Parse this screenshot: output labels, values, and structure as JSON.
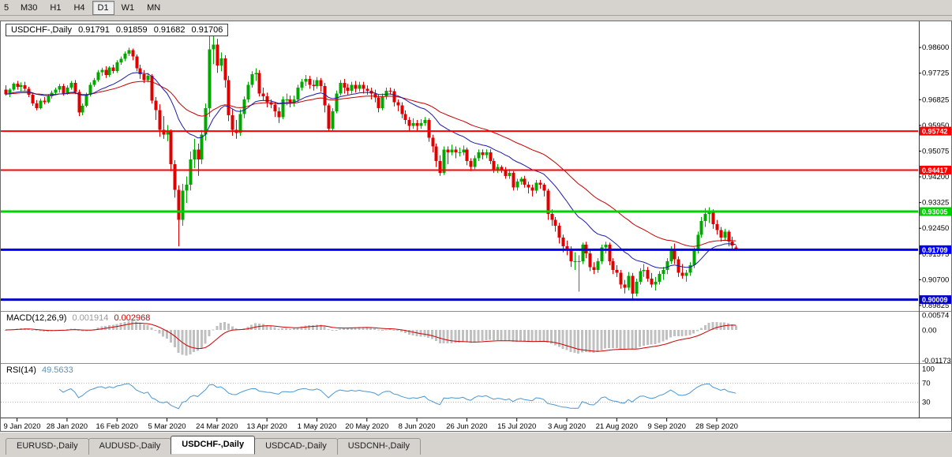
{
  "toolbar": {
    "buttons": [
      "5",
      "M30",
      "H1",
      "H4",
      "D1",
      "W1",
      "MN"
    ],
    "active": "D1"
  },
  "title_box": {
    "symbol": "USDCHF-,Daily",
    "open": "0.91791",
    "high": "0.91859",
    "low": "0.91682",
    "close": "0.91706"
  },
  "macd_panel": {
    "label": "MACD(12,26,9)",
    "main_value": "0.001914",
    "signal_value": "0.002968",
    "axis_labels": [
      {
        "text": "0.00574",
        "value": 0.00574
      },
      {
        "text": "0.00",
        "value": 0
      },
      {
        "text": "-0.01173",
        "value": -0.01173
      }
    ]
  },
  "rsi_panel": {
    "label": "RSI(14)",
    "value": "49.5633",
    "axis_labels": [
      {
        "text": "100",
        "value": 100
      },
      {
        "text": "70",
        "value": 70
      },
      {
        "text": "30",
        "value": 30
      }
    ],
    "dotted_levels": [
      70,
      30
    ]
  },
  "price_axis": {
    "labels": [
      {
        "text": "0.98600",
        "value": 0.986
      },
      {
        "text": "0.97725",
        "value": 0.97725
      },
      {
        "text": "0.96825",
        "value": 0.96825
      },
      {
        "text": "0.95950",
        "value": 0.9595
      },
      {
        "text": "0.95075",
        "value": 0.95075
      },
      {
        "text": "0.94200",
        "value": 0.942
      },
      {
        "text": "0.93325",
        "value": 0.93325
      },
      {
        "text": "0.92450",
        "value": 0.9245
      },
      {
        "text": "0.91575",
        "value": 0.91575
      },
      {
        "text": "0.90700",
        "value": 0.907
      },
      {
        "text": "0.89825",
        "value": 0.89825
      }
    ]
  },
  "levels": [
    {
      "text": "0.95742",
      "value": 0.95742,
      "color": "#ff0000",
      "width": 2
    },
    {
      "text": "0.94417",
      "value": 0.94417,
      "color": "#ff0000",
      "width": 2
    },
    {
      "text": "0.93005",
      "value": 0.93005,
      "color": "#00d200",
      "width": 3
    },
    {
      "text": "0.91709",
      "value": 0.91709,
      "color": "#0000ff",
      "width": 3
    },
    {
      "text": "0.90009",
      "value": 0.90009,
      "color": "#0000c8",
      "width": 3
    }
  ],
  "date_axis": {
    "labels": [
      "9 Jan 2020",
      "28 Jan 2020",
      "16 Feb 2020",
      "5 Mar 2020",
      "24 Mar 2020",
      "13 Apr 2020",
      "1 May 2020",
      "20 May 2020",
      "8 Jun 2020",
      "26 Jun 2020",
      "15 Jul 2020",
      "3 Aug 2020",
      "21 Aug 2020",
      "9 Sep 2020",
      "28 Sep 2020"
    ]
  },
  "tabs": [
    {
      "label": "EURUSD-,Daily",
      "active": false
    },
    {
      "label": "AUDUSD-,Daily",
      "active": false
    },
    {
      "label": "USDCHF-,Daily",
      "active": true
    },
    {
      "label": "USDCAD-,Daily",
      "active": false
    },
    {
      "label": "USDCNH-,Daily",
      "active": false
    }
  ],
  "colors": {
    "up": "#00a800",
    "down": "#e00000",
    "ma_fast": "#1c1ca8",
    "ma_slow": "#c80000",
    "macd_hist": "#c0c0c0",
    "macd_signal": "#cc0000",
    "rsi_line": "#4a96d2",
    "grid_text": "#000000",
    "pane_separator": "#8c8c8c",
    "axis_line": "#3c3c3c"
  },
  "chart_data": {
    "type": "candlestick",
    "symbol": "USDCHF",
    "timeframe": "Daily",
    "last": {
      "open": 0.91791,
      "high": 0.91859,
      "low": 0.91682,
      "close": 0.91706
    },
    "indicators": {
      "macd": {
        "fast": 12,
        "slow": 26,
        "signal": 9,
        "current_main": 0.001914,
        "current_signal": 0.002968
      },
      "rsi": {
        "period": 14,
        "current": 49.5633
      },
      "moving_averages": [
        {
          "type": "EMA",
          "period": 20
        },
        {
          "type": "EMA",
          "period": 45
        }
      ]
    },
    "horizontal_levels": [
      0.95742,
      0.94417,
      0.93005,
      0.91709,
      0.90009
    ],
    "price_range": {
      "top": 0.9945,
      "bottom": 0.8965
    },
    "tick_first_index": 3,
    "tick_step": 13,
    "candles": [
      [
        0.9715,
        0.973,
        0.9695,
        0.97
      ],
      [
        0.97,
        0.972,
        0.969,
        0.9715
      ],
      [
        0.9715,
        0.974,
        0.971,
        0.9735
      ],
      [
        0.9735,
        0.9745,
        0.9715,
        0.9725
      ],
      [
        0.9725,
        0.974,
        0.971,
        0.973
      ],
      [
        0.973,
        0.9742,
        0.9712,
        0.9718
      ],
      [
        0.9718,
        0.9725,
        0.969,
        0.9698
      ],
      [
        0.9698,
        0.9705,
        0.966,
        0.9668
      ],
      [
        0.9668,
        0.968,
        0.9645,
        0.9652
      ],
      [
        0.9652,
        0.9685,
        0.9648,
        0.9678
      ],
      [
        0.9678,
        0.969,
        0.9665,
        0.9672
      ],
      [
        0.9672,
        0.97,
        0.9668,
        0.9692
      ],
      [
        0.9692,
        0.9712,
        0.9685,
        0.9705
      ],
      [
        0.9705,
        0.9722,
        0.9698,
        0.9715
      ],
      [
        0.9715,
        0.9735,
        0.9705,
        0.9728
      ],
      [
        0.9728,
        0.9735,
        0.9695,
        0.9702
      ],
      [
        0.9702,
        0.973,
        0.9698,
        0.9722
      ],
      [
        0.9722,
        0.9745,
        0.9715,
        0.9738
      ],
      [
        0.9738,
        0.9748,
        0.97,
        0.9708
      ],
      [
        0.9708,
        0.9715,
        0.9625,
        0.9638
      ],
      [
        0.9638,
        0.9668,
        0.9628,
        0.966
      ],
      [
        0.966,
        0.9705,
        0.9655,
        0.9698
      ],
      [
        0.9698,
        0.974,
        0.9692,
        0.9732
      ],
      [
        0.9732,
        0.9755,
        0.9725,
        0.9748
      ],
      [
        0.9748,
        0.9782,
        0.9742,
        0.9775
      ],
      [
        0.9775,
        0.979,
        0.9762,
        0.9782
      ],
      [
        0.9782,
        0.9795,
        0.9755,
        0.9765
      ],
      [
        0.9765,
        0.9795,
        0.9758,
        0.979
      ],
      [
        0.979,
        0.98,
        0.977,
        0.9778
      ],
      [
        0.9778,
        0.9815,
        0.9772,
        0.9808
      ],
      [
        0.9808,
        0.9828,
        0.98,
        0.982
      ],
      [
        0.982,
        0.9845,
        0.9812,
        0.9838
      ],
      [
        0.9838,
        0.9858,
        0.983,
        0.985
      ],
      [
        0.985,
        0.9855,
        0.9815,
        0.9828
      ],
      [
        0.9828,
        0.9835,
        0.9778,
        0.9788
      ],
      [
        0.9788,
        0.98,
        0.9752,
        0.9768
      ],
      [
        0.9768,
        0.9782,
        0.9738,
        0.9748
      ],
      [
        0.9748,
        0.9772,
        0.974,
        0.9762
      ],
      [
        0.9762,
        0.9768,
        0.9668,
        0.9678
      ],
      [
        0.9678,
        0.969,
        0.9612,
        0.9645
      ],
      [
        0.9645,
        0.9665,
        0.9555,
        0.9578
      ],
      [
        0.9578,
        0.9625,
        0.9548,
        0.9562
      ],
      [
        0.9562,
        0.9595,
        0.954,
        0.9572
      ],
      [
        0.9572,
        0.958,
        0.9438,
        0.9462
      ],
      [
        0.9462,
        0.9475,
        0.9348,
        0.9375
      ],
      [
        0.9375,
        0.939,
        0.9182,
        0.9272
      ],
      [
        0.9272,
        0.9395,
        0.9252,
        0.9372
      ],
      [
        0.9372,
        0.942,
        0.933,
        0.9392
      ],
      [
        0.9392,
        0.9505,
        0.9372,
        0.9478
      ],
      [
        0.9478,
        0.9548,
        0.9448,
        0.9512
      ],
      [
        0.9512,
        0.9532,
        0.9422,
        0.9478
      ],
      [
        0.9478,
        0.9578,
        0.9462,
        0.9562
      ],
      [
        0.9562,
        0.9668,
        0.9542,
        0.9652
      ],
      [
        0.9652,
        0.9901,
        0.9622,
        0.9852
      ],
      [
        0.9852,
        0.9898,
        0.9802,
        0.9868
      ],
      [
        0.9868,
        0.9888,
        0.9772,
        0.9798
      ],
      [
        0.9798,
        0.9842,
        0.9778,
        0.9822
      ],
      [
        0.9822,
        0.9832,
        0.9722,
        0.9748
      ],
      [
        0.9748,
        0.9762,
        0.9608,
        0.9628
      ],
      [
        0.9628,
        0.9648,
        0.9558,
        0.9578
      ],
      [
        0.9578,
        0.9612,
        0.9548,
        0.9568
      ],
      [
        0.9568,
        0.9648,
        0.9558,
        0.9632
      ],
      [
        0.9632,
        0.9692,
        0.9618,
        0.9682
      ],
      [
        0.9682,
        0.9742,
        0.9672,
        0.9732
      ],
      [
        0.9732,
        0.9778,
        0.9722,
        0.9768
      ],
      [
        0.9768,
        0.9788,
        0.9745,
        0.9772
      ],
      [
        0.9772,
        0.9782,
        0.9692,
        0.9702
      ],
      [
        0.9702,
        0.9722,
        0.9678,
        0.9692
      ],
      [
        0.9692,
        0.9705,
        0.9655,
        0.9672
      ],
      [
        0.9672,
        0.9682,
        0.9652,
        0.9665
      ],
      [
        0.9665,
        0.9672,
        0.9622,
        0.9642
      ],
      [
        0.9642,
        0.9655,
        0.9602,
        0.9622
      ],
      [
        0.9622,
        0.9692,
        0.9615,
        0.9682
      ],
      [
        0.9682,
        0.9702,
        0.9662,
        0.9682
      ],
      [
        0.9682,
        0.9695,
        0.9655,
        0.9672
      ],
      [
        0.9672,
        0.9695,
        0.9658,
        0.9682
      ],
      [
        0.9682,
        0.9732,
        0.9672,
        0.9722
      ],
      [
        0.9722,
        0.9752,
        0.9712,
        0.9742
      ],
      [
        0.9742,
        0.9765,
        0.9728,
        0.9752
      ],
      [
        0.9752,
        0.9762,
        0.9718,
        0.9732
      ],
      [
        0.9732,
        0.9748,
        0.9712,
        0.9728
      ],
      [
        0.9728,
        0.9758,
        0.9718,
        0.9748
      ],
      [
        0.9748,
        0.9755,
        0.9708,
        0.9728
      ],
      [
        0.9728,
        0.9738,
        0.9638,
        0.9662
      ],
      [
        0.9662,
        0.9668,
        0.9572,
        0.9582
      ],
      [
        0.9582,
        0.9652,
        0.9575,
        0.9642
      ],
      [
        0.9642,
        0.9712,
        0.9635,
        0.9702
      ],
      [
        0.9702,
        0.9748,
        0.9695,
        0.9738
      ],
      [
        0.9738,
        0.9752,
        0.9702,
        0.9722
      ],
      [
        0.9722,
        0.9735,
        0.9698,
        0.9712
      ],
      [
        0.9712,
        0.9742,
        0.9702,
        0.9732
      ],
      [
        0.9732,
        0.9745,
        0.9705,
        0.9718
      ],
      [
        0.9718,
        0.9742,
        0.9708,
        0.9732
      ],
      [
        0.9732,
        0.9742,
        0.9702,
        0.9718
      ],
      [
        0.9718,
        0.973,
        0.9698,
        0.9712
      ],
      [
        0.9712,
        0.9722,
        0.9682,
        0.9702
      ],
      [
        0.9702,
        0.9715,
        0.9672,
        0.9688
      ],
      [
        0.9688,
        0.9698,
        0.9638,
        0.9652
      ],
      [
        0.9652,
        0.9702,
        0.9645,
        0.9692
      ],
      [
        0.9692,
        0.9722,
        0.9682,
        0.9712
      ],
      [
        0.9712,
        0.9722,
        0.9698,
        0.971
      ],
      [
        0.971,
        0.9718,
        0.9658,
        0.9672
      ],
      [
        0.9672,
        0.9682,
        0.9642,
        0.9662
      ],
      [
        0.9662,
        0.9672,
        0.9618,
        0.9632
      ],
      [
        0.9632,
        0.9645,
        0.9598,
        0.9612
      ],
      [
        0.9612,
        0.9622,
        0.9572,
        0.9592
      ],
      [
        0.9592,
        0.9618,
        0.9582,
        0.9602
      ],
      [
        0.9602,
        0.9612,
        0.9572,
        0.9592
      ],
      [
        0.9592,
        0.9615,
        0.9582,
        0.9602
      ],
      [
        0.9602,
        0.9622,
        0.9592,
        0.9612
      ],
      [
        0.9612,
        0.9618,
        0.9538,
        0.9552
      ],
      [
        0.9552,
        0.9562,
        0.9502,
        0.9522
      ],
      [
        0.9522,
        0.9532,
        0.9452,
        0.9472
      ],
      [
        0.9472,
        0.9492,
        0.9422,
        0.9432
      ],
      [
        0.9432,
        0.9522,
        0.9425,
        0.9512
      ],
      [
        0.9512,
        0.9522,
        0.9462,
        0.9502
      ],
      [
        0.9502,
        0.9528,
        0.9492,
        0.9512
      ],
      [
        0.9512,
        0.9522,
        0.9482,
        0.9502
      ],
      [
        0.9502,
        0.9518,
        0.9488,
        0.9502
      ],
      [
        0.9502,
        0.9525,
        0.9492,
        0.9512
      ],
      [
        0.9512,
        0.9518,
        0.9458,
        0.9472
      ],
      [
        0.9472,
        0.9482,
        0.9438,
        0.9452
      ],
      [
        0.9452,
        0.9492,
        0.9445,
        0.9482
      ],
      [
        0.9482,
        0.9512,
        0.9472,
        0.9502
      ],
      [
        0.9502,
        0.9512,
        0.9478,
        0.9492
      ],
      [
        0.9492,
        0.9512,
        0.9482,
        0.9502
      ],
      [
        0.9502,
        0.9512,
        0.9462,
        0.9472
      ],
      [
        0.9472,
        0.9482,
        0.9432,
        0.9442
      ],
      [
        0.9442,
        0.9462,
        0.9432,
        0.9452
      ],
      [
        0.9452,
        0.9458,
        0.9432,
        0.9442
      ],
      [
        0.9442,
        0.9452,
        0.9412,
        0.9422
      ],
      [
        0.9422,
        0.9445,
        0.9412,
        0.9432
      ],
      [
        0.9432,
        0.9438,
        0.9372,
        0.9382
      ],
      [
        0.9382,
        0.9412,
        0.9372,
        0.9402
      ],
      [
        0.9402,
        0.9418,
        0.9392,
        0.9412
      ],
      [
        0.9412,
        0.9422,
        0.9382,
        0.9392
      ],
      [
        0.9392,
        0.9402,
        0.9362,
        0.9382
      ],
      [
        0.9382,
        0.9392,
        0.9352,
        0.9372
      ],
      [
        0.9372,
        0.9408,
        0.9362,
        0.9398
      ],
      [
        0.9398,
        0.9408,
        0.9378,
        0.9392
      ],
      [
        0.9392,
        0.9398,
        0.9352,
        0.9372
      ],
      [
        0.9372,
        0.9378,
        0.9272,
        0.9292
      ],
      [
        0.9292,
        0.9308,
        0.9252,
        0.9272
      ],
      [
        0.9272,
        0.9282,
        0.9232,
        0.9252
      ],
      [
        0.9252,
        0.9262,
        0.9192,
        0.9212
      ],
      [
        0.9212,
        0.9222,
        0.9162,
        0.9182
      ],
      [
        0.9182,
        0.9202,
        0.9152,
        0.9172
      ],
      [
        0.9172,
        0.9182,
        0.9112,
        0.9132
      ],
      [
        0.9132,
        0.9162,
        0.9102,
        0.9132
      ],
      [
        0.9132,
        0.9152,
        0.9028,
        0.9132
      ],
      [
        0.9132,
        0.9195,
        0.9122,
        0.9188
      ],
      [
        0.9188,
        0.9198,
        0.9142,
        0.9158
      ],
      [
        0.9158,
        0.9168,
        0.9098,
        0.9112
      ],
      [
        0.9112,
        0.9128,
        0.9088,
        0.9102
      ],
      [
        0.9102,
        0.9142,
        0.9092,
        0.9132
      ],
      [
        0.9132,
        0.9188,
        0.9122,
        0.9178
      ],
      [
        0.9178,
        0.9198,
        0.9158,
        0.9188
      ],
      [
        0.9188,
        0.9195,
        0.9118,
        0.9132
      ],
      [
        0.9132,
        0.9142,
        0.9088,
        0.9102
      ],
      [
        0.9102,
        0.9118,
        0.9078,
        0.9092
      ],
      [
        0.9092,
        0.9102,
        0.9038,
        0.9052
      ],
      [
        0.9052,
        0.9068,
        0.9022,
        0.9042
      ],
      [
        0.9042,
        0.9095,
        0.9032,
        0.9082
      ],
      [
        0.9082,
        0.9092,
        0.8998,
        0.9022
      ],
      [
        0.9022,
        0.9072,
        0.9012,
        0.9062
      ],
      [
        0.9062,
        0.9108,
        0.9052,
        0.9098
      ],
      [
        0.9098,
        0.9122,
        0.9078,
        0.9102
      ],
      [
        0.9102,
        0.9112,
        0.9062,
        0.9072
      ],
      [
        0.9072,
        0.9092,
        0.9042,
        0.9052
      ],
      [
        0.9052,
        0.9078,
        0.9032,
        0.9062
      ],
      [
        0.9062,
        0.9098,
        0.9052,
        0.9088
      ],
      [
        0.9088,
        0.9112,
        0.9068,
        0.9102
      ],
      [
        0.9102,
        0.9142,
        0.9088,
        0.9132
      ],
      [
        0.9132,
        0.9182,
        0.9122,
        0.9172
      ],
      [
        0.9172,
        0.9192,
        0.9122,
        0.9138
      ],
      [
        0.9138,
        0.9148,
        0.9078,
        0.9092
      ],
      [
        0.9092,
        0.9122,
        0.9072,
        0.9082
      ],
      [
        0.9082,
        0.9102,
        0.9062,
        0.9092
      ],
      [
        0.9092,
        0.9128,
        0.9082,
        0.9118
      ],
      [
        0.9118,
        0.9178,
        0.9108,
        0.9168
      ],
      [
        0.9168,
        0.9232,
        0.9158,
        0.9222
      ],
      [
        0.9222,
        0.9282,
        0.9212,
        0.9268
      ],
      [
        0.9268,
        0.9312,
        0.9248,
        0.9292
      ],
      [
        0.9292,
        0.9315,
        0.9262,
        0.9302
      ],
      [
        0.9302,
        0.9308,
        0.9242,
        0.9258
      ],
      [
        0.9258,
        0.9272,
        0.9222,
        0.9238
      ],
      [
        0.9238,
        0.9248,
        0.9198,
        0.9212
      ],
      [
        0.9212,
        0.9242,
        0.9202,
        0.9232
      ],
      [
        0.9232,
        0.9238,
        0.9182,
        0.9198
      ],
      [
        0.9198,
        0.9215,
        0.9172,
        0.9185
      ],
      [
        0.91791,
        0.91859,
        0.91682,
        0.91706
      ]
    ]
  }
}
